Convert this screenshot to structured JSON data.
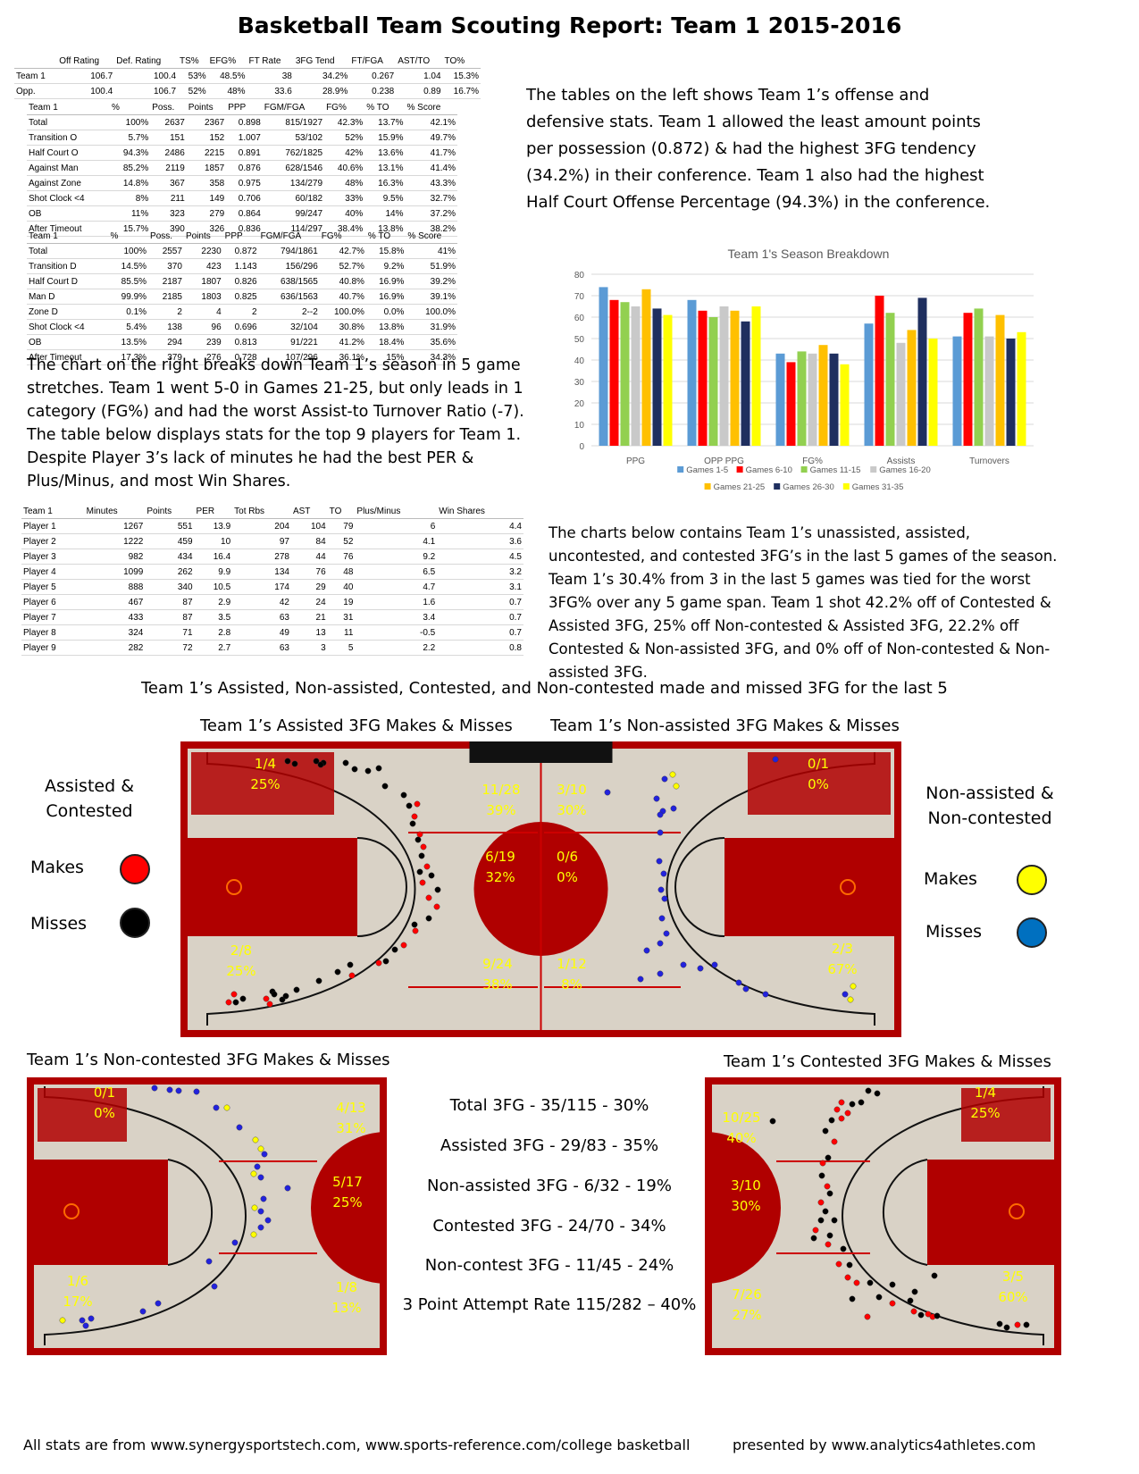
{
  "title": "Basketball Team Scouting Report:  Team 1  2015-2016",
  "summary_table": {
    "headers": [
      "",
      "Off Rating",
      "Def. Rating",
      "TS%",
      "EFG%",
      "FT Rate",
      "3FG Tend",
      "FT/FGA",
      "AST/TO",
      "TO%"
    ],
    "rows": [
      [
        "Team 1",
        "106.7",
        "100.4",
        "53%",
        "48.5%",
        "38",
        "34.2%",
        "0.267",
        "1.04",
        "15.3%"
      ],
      [
        "Opp.",
        "100.4",
        "106.7",
        "52%",
        "48%",
        "33.6",
        "28.9%",
        "0.238",
        "0.89",
        "16.7%"
      ]
    ]
  },
  "offense_table": {
    "headers": [
      "Team 1",
      "%",
      "Poss.",
      "Points",
      "PPP",
      "FGM/FGA",
      "FG%",
      "% TO",
      "% Score"
    ],
    "rows": [
      [
        "Total",
        "100%",
        "2637",
        "2367",
        "0.898",
        "815/1927",
        "42.3%",
        "13.7%",
        "42.1%"
      ],
      [
        "Transition O",
        "5.7%",
        "151",
        "152",
        "1.007",
        "53/102",
        "52%",
        "15.9%",
        "49.7%"
      ],
      [
        "Half Court O",
        "94.3%",
        "2486",
        "2215",
        "0.891",
        "762/1825",
        "42%",
        "13.6%",
        "41.7%"
      ],
      [
        "Against Man",
        "85.2%",
        "2119",
        "1857",
        "0.876",
        "628/1546",
        "40.6%",
        "13.1%",
        "41.4%"
      ],
      [
        "Against Zone",
        "14.8%",
        "367",
        "358",
        "0.975",
        "134/279",
        "48%",
        "16.3%",
        "43.3%"
      ],
      [
        "Shot Clock <4",
        "8%",
        "211",
        "149",
        "0.706",
        "60/182",
        "33%",
        "9.5%",
        "32.7%"
      ],
      [
        "OB",
        "11%",
        "323",
        "279",
        "0.864",
        "99/247",
        "40%",
        "14%",
        "37.2%"
      ],
      [
        "After Timeout",
        "15.7%",
        "390",
        "326",
        "0.836",
        "114/297",
        "38.4%",
        "13.8%",
        "38.2%"
      ]
    ]
  },
  "defense_table": {
    "headers": [
      "Team 1",
      "%",
      "Poss.",
      "Points",
      "PPP",
      "FGM/FGA",
      "FG%",
      "% TO",
      "% Score"
    ],
    "rows": [
      [
        "Total",
        "100%",
        "2557",
        "2230",
        "0.872",
        "794/1861",
        "42.7%",
        "15.8%",
        "41%"
      ],
      [
        "Transition D",
        "14.5%",
        "370",
        "423",
        "1.143",
        "156/296",
        "52.7%",
        "9.2%",
        "51.9%"
      ],
      [
        "Half Court D",
        "85.5%",
        "2187",
        "1807",
        "0.826",
        "638/1565",
        "40.8%",
        "16.9%",
        "39.2%"
      ],
      [
        "Man D",
        "99.9%",
        "2185",
        "1803",
        "0.825",
        "636/1563",
        "40.7%",
        "16.9%",
        "39.1%"
      ],
      [
        "Zone D",
        "0.1%",
        "2",
        "4",
        "2",
        "2--2",
        "100.0%",
        "0.0%",
        "100.0%"
      ],
      [
        "Shot Clock <4",
        "5.4%",
        "138",
        "96",
        "0.696",
        "32/104",
        "30.8%",
        "13.8%",
        "31.9%"
      ],
      [
        "OB",
        "13.5%",
        "294",
        "239",
        "0.813",
        "91/221",
        "41.2%",
        "18.4%",
        "35.6%"
      ],
      [
        "After Timeout",
        "17.3%",
        "379",
        "276",
        "0.728",
        "107/296",
        "36.1%",
        "15%",
        "34.3%"
      ]
    ]
  },
  "player_table": {
    "headers": [
      "Team 1",
      "Minutes",
      "Points",
      "PER",
      "Tot Rbs",
      "AST",
      "TO",
      "Plus/Minus",
      "Win Shares"
    ],
    "rows": [
      [
        "Player 1",
        "1267",
        "551",
        "13.9",
        "204",
        "104",
        "79",
        "6",
        "4.4"
      ],
      [
        "Player 2",
        "1222",
        "459",
        "10",
        "97",
        "84",
        "52",
        "4.1",
        "3.6"
      ],
      [
        "Player 3",
        "982",
        "434",
        "16.4",
        "278",
        "44",
        "76",
        "9.2",
        "4.5"
      ],
      [
        "Player 4",
        "1099",
        "262",
        "9.9",
        "134",
        "76",
        "48",
        "6.5",
        "3.2"
      ],
      [
        "Player 5",
        "888",
        "340",
        "10.5",
        "174",
        "29",
        "40",
        "4.7",
        "3.1"
      ],
      [
        "Player 6",
        "467",
        "87",
        "2.9",
        "42",
        "24",
        "19",
        "1.6",
        "0.7"
      ],
      [
        "Player 7",
        "433",
        "87",
        "3.5",
        "63",
        "21",
        "31",
        "3.4",
        "0.7"
      ],
      [
        "Player 8",
        "324",
        "71",
        "2.8",
        "49",
        "13",
        "11",
        "-0.5",
        "0.7"
      ],
      [
        "Player 9",
        "282",
        "72",
        "2.7",
        "63",
        "3",
        "5",
        "2.2",
        "0.8"
      ]
    ]
  },
  "text": {
    "para_tables": "The tables on the left shows Team 1’s offense and defensive stats.  Team 1 allowed the least amount points per possession (0.872) & had the highest 3FG tendency (34.2%) in their conference.  Team 1 also had the highest Half Court Offense Percentage (94.3%) in the conference.",
    "para_chart": "The chart on the right breaks down Team 1’s season in 5 game stretches.  Team 1 went 5-0 in Games 21-25, but only leads in 1 category (FG%) and had the worst Assist-to Turnover Ratio (-7).  The table below displays stats for the top 9 players for Team 1.  Despite Player 3’s lack of minutes he had the best PER & Plus/Minus, and most Win Shares.",
    "para_3fg": "The charts below contains Team 1’s unassisted, assisted, uncontested, and contested 3FG’s in the last 5 games of the season.  Team 1’s 30.4% from 3 in the last 5 games was tied for the worst 3FG% over any 5 game span.  Team 1 shot 42.2% off of Contested & Assisted 3FG, 25% off Non-contested & Assisted 3FG, 22.2% off Contested & Non-assisted 3FG, and 0% off of Non-contested & Non-assisted 3FG.",
    "section_title": "Team 1’s Assisted, Non-assisted, Contested, and Non-contested made and missed 3FG for the last 5",
    "cap_assisted": "Team 1’s Assisted 3FG Makes & Misses",
    "cap_nonassisted": "Team 1’s Non-assisted 3FG Makes & Misses",
    "cap_noncontested": "Team 1’s Non-contested 3FG Makes & Misses",
    "cap_contested": "Team 1’s Contested 3FG Makes & Misses",
    "legend_left_title": "Assisted & Contested",
    "legend_right_title": "Non-assisted & Non-contested",
    "makes": "Makes",
    "misses": "Misses",
    "footer_left": "All stats are from www.synergysportstech.com, www.sports-reference.com/college basketball",
    "footer_right": "presented by www.analytics4athletes.com"
  },
  "summary_lines": [
    "Total 3FG - 35/115 - 30%",
    "Assisted 3FG - 29/83 - 35%",
    "Non-assisted 3FG - 6/32 - 19%",
    "Contested 3FG - 24/70 - 34%",
    "Non-contest 3FG - 11/45 - 24%",
    "3 Point Attempt Rate 115/282 – 40%"
  ],
  "zone_labels": {
    "big_left": [
      [
        "1/4",
        "25%"
      ],
      [
        "11/28",
        "39%"
      ],
      [
        "6/19",
        "32%"
      ],
      [
        "2/8",
        "25%"
      ],
      [
        "9/24",
        "38%"
      ]
    ],
    "big_right": [
      [
        "3/10",
        "30%"
      ],
      [
        "0/1",
        "0%"
      ],
      [
        "0/6",
        "0%"
      ],
      [
        "1/12",
        "8%"
      ],
      [
        "2/3",
        "67%"
      ]
    ],
    "noncontested": [
      [
        "0/1",
        "0%"
      ],
      [
        "4/13",
        "31%"
      ],
      [
        "5/17",
        "25%"
      ],
      [
        "1/6",
        "17%"
      ],
      [
        "1/8",
        "13%"
      ]
    ],
    "contested": [
      [
        "1/4",
        "25%"
      ],
      [
        "10/25",
        "40%"
      ],
      [
        "3/10",
        "30%"
      ],
      [
        "3/5",
        "60%"
      ],
      [
        "7/26",
        "27%"
      ]
    ]
  },
  "colors": {
    "makes_assisted": "#ff0000",
    "misses_assisted": "#000000",
    "makes_nonassisted": "#ffff00",
    "misses_nonassisted": "#0070c0",
    "court_red": "#b00000",
    "zone_label": "#ffff00"
  },
  "chart_data": {
    "type": "bar",
    "title": "Team 1's Season Breakdown",
    "categories": [
      "PPG",
      "OPP PPG",
      "FG%",
      "Assists",
      "Turnovers"
    ],
    "ylim": [
      0,
      80
    ],
    "yticks": [
      0,
      10,
      20,
      30,
      40,
      50,
      60,
      70,
      80
    ],
    "grid": true,
    "legend_position": "bottom",
    "series": [
      {
        "name": "Games 1-5",
        "color": "#5b9bd5",
        "values": [
          74,
          68,
          43,
          57,
          51
        ]
      },
      {
        "name": "Games 6-10",
        "color": "#ff0000",
        "values": [
          68,
          63,
          39,
          70,
          62
        ]
      },
      {
        "name": "Games 11-15",
        "color": "#92d050",
        "values": [
          67,
          60,
          44,
          62,
          64
        ]
      },
      {
        "name": "Games 16-20",
        "color": "#c9c9c9",
        "values": [
          65,
          65,
          43,
          48,
          51
        ]
      },
      {
        "name": "Games 21-25",
        "color": "#ffc000",
        "values": [
          73,
          63,
          47,
          54,
          61
        ]
      },
      {
        "name": "Games 26-30",
        "color": "#1f2f5f",
        "values": [
          64,
          58,
          43,
          69,
          50
        ]
      },
      {
        "name": "Games 31-35",
        "color": "#ffff00",
        "values": [
          61,
          65,
          38,
          50,
          53
        ]
      }
    ]
  }
}
